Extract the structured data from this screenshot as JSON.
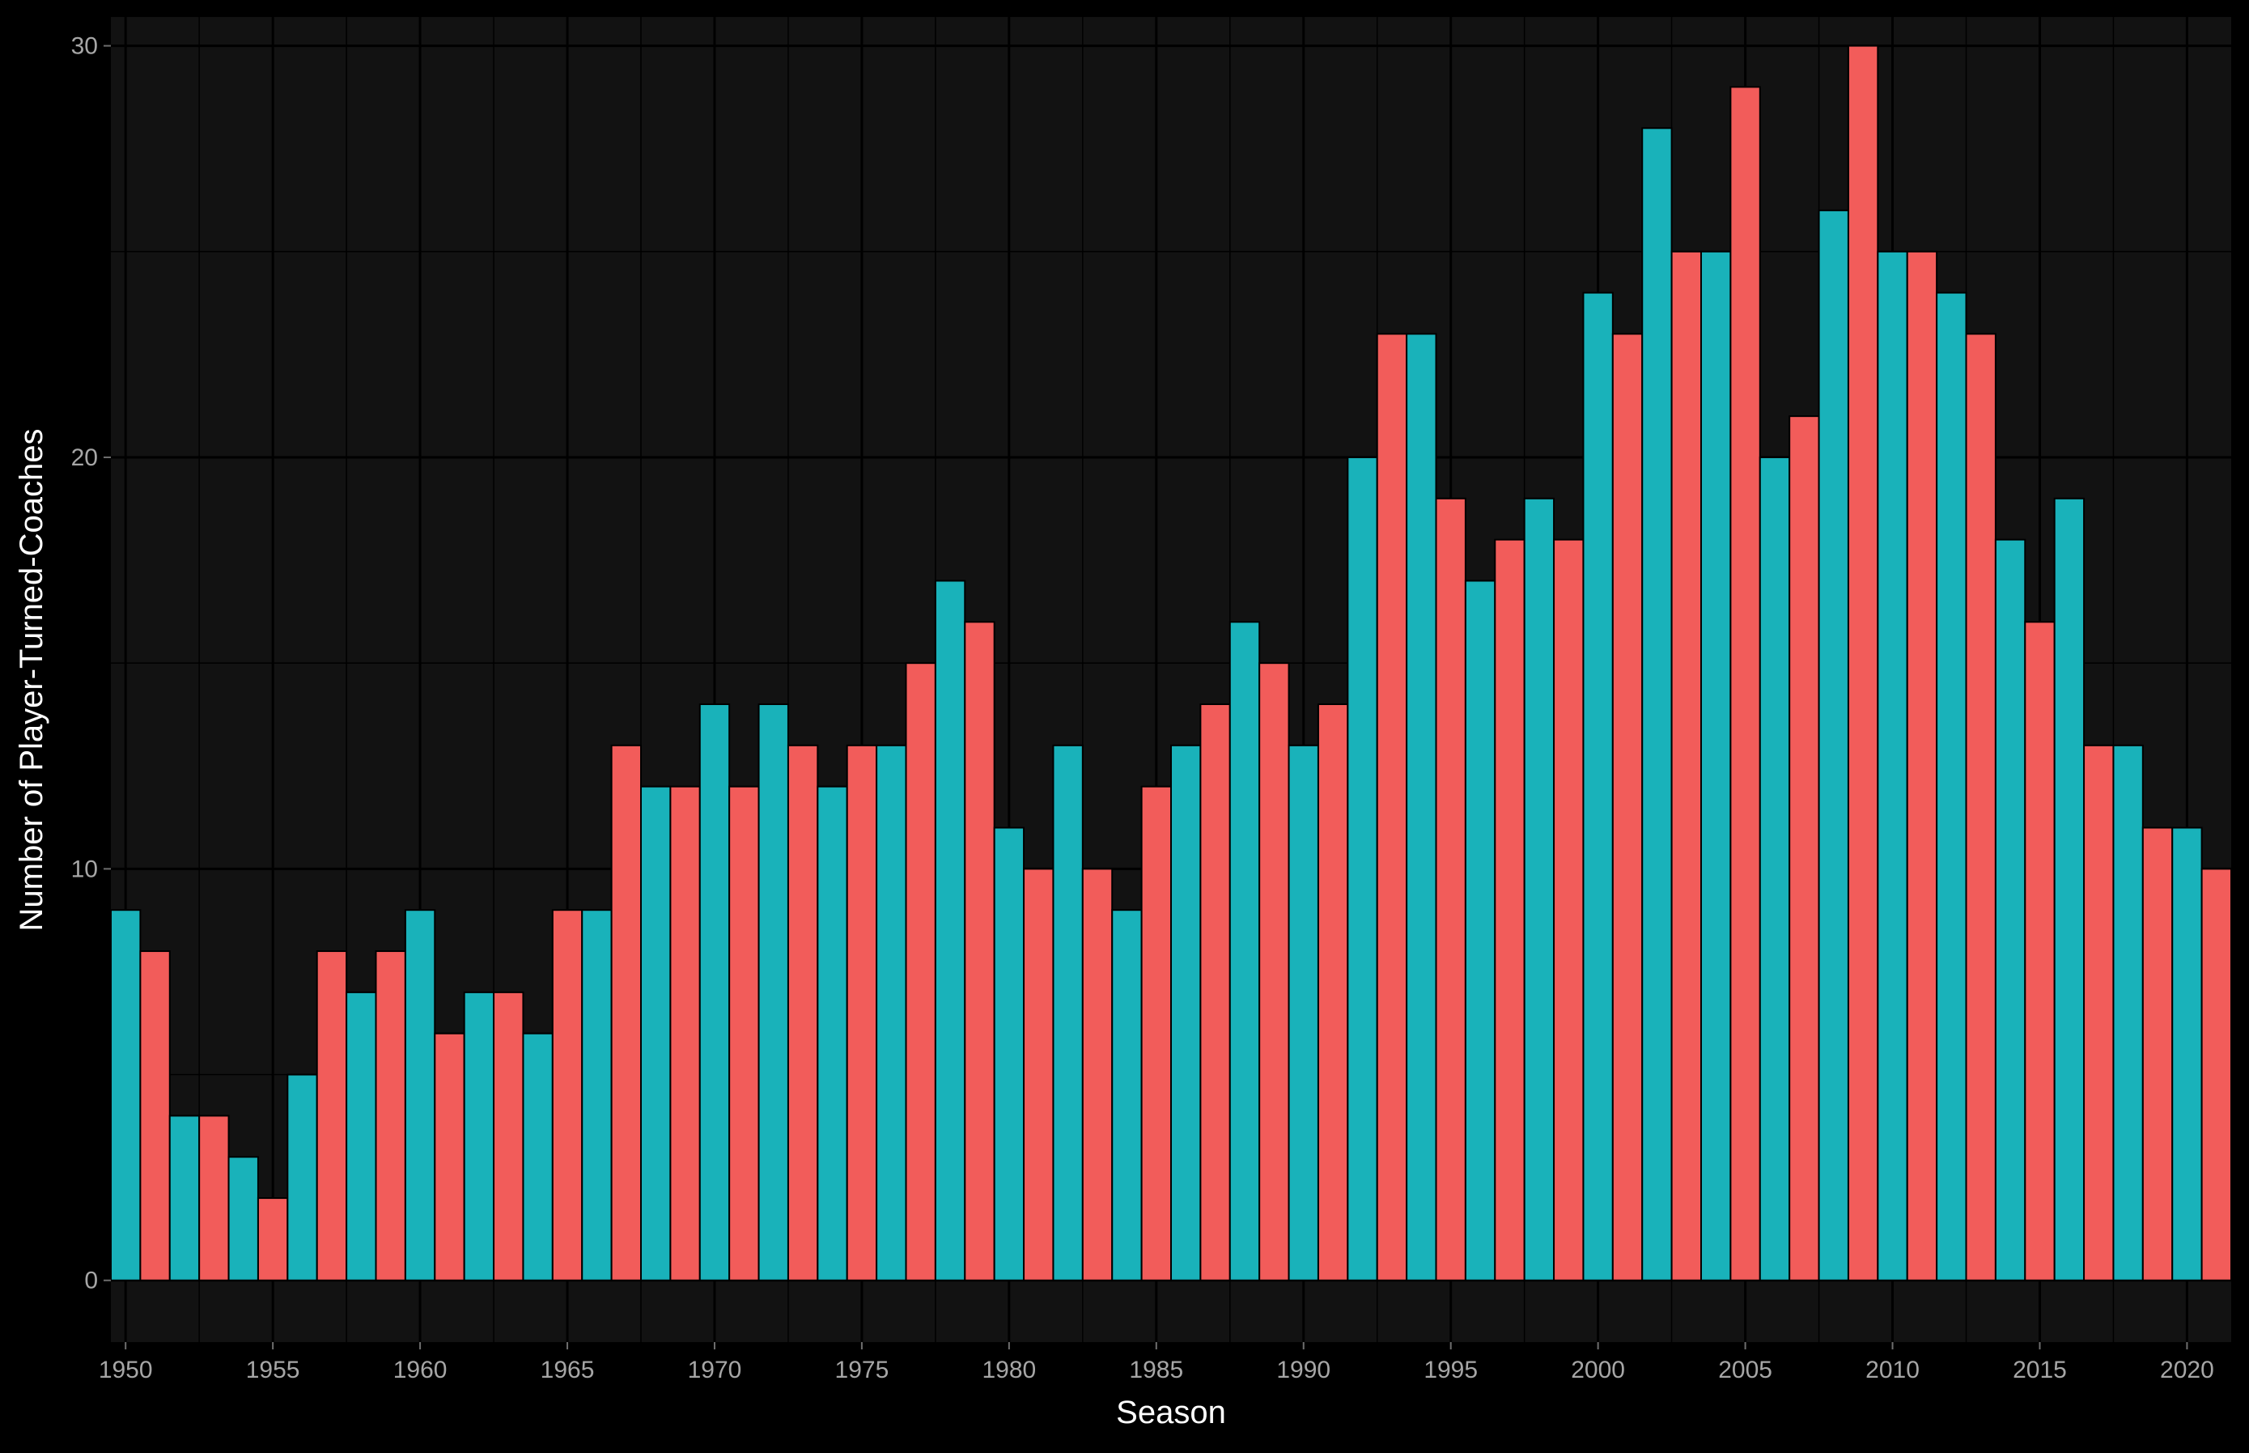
{
  "chart_data": {
    "type": "bar",
    "title": "",
    "xlabel": "Season",
    "ylabel": "Number of Player-Turned-Coaches",
    "x": [
      1950,
      1951,
      1952,
      1953,
      1954,
      1955,
      1956,
      1957,
      1958,
      1959,
      1960,
      1961,
      1962,
      1963,
      1964,
      1965,
      1966,
      1967,
      1968,
      1969,
      1970,
      1971,
      1972,
      1973,
      1974,
      1975,
      1976,
      1977,
      1978,
      1979,
      1980,
      1981,
      1982,
      1983,
      1984,
      1985,
      1986,
      1987,
      1988,
      1989,
      1990,
      1991,
      1992,
      1993,
      1994,
      1995,
      1996,
      1997,
      1998,
      1999,
      2000,
      2001,
      2002,
      2003,
      2004,
      2005,
      2006,
      2007,
      2008,
      2009,
      2010,
      2011,
      2012,
      2013,
      2014,
      2015,
      2016,
      2017,
      2018,
      2019,
      2020,
      2021
    ],
    "values": [
      9,
      8,
      4,
      4,
      3,
      2,
      5,
      8,
      7,
      8,
      9,
      6,
      7,
      7,
      6,
      9,
      9,
      13,
      12,
      12,
      14,
      12,
      14,
      13,
      12,
      13,
      13,
      15,
      17,
      16,
      11,
      10,
      13,
      10,
      9,
      12,
      13,
      14,
      16,
      15,
      13,
      14,
      20,
      23,
      23,
      19,
      17,
      18,
      19,
      18,
      24,
      23,
      28,
      25,
      25,
      29,
      20,
      21,
      26,
      30,
      25,
      25,
      24,
      23,
      18,
      16,
      19,
      13,
      13,
      11,
      11,
      10
    ],
    "xticks": [
      "1950",
      "1955",
      "1960",
      "1965",
      "1970",
      "1975",
      "1980",
      "1985",
      "1990",
      "1995",
      "2000",
      "2005",
      "2010",
      "2015",
      "2020"
    ],
    "yticks": [
      "0",
      "10",
      "20",
      "30"
    ],
    "xlim": [
      1949.5,
      2021.5
    ],
    "ylim": [
      -1.5,
      30.7
    ],
    "grid": true,
    "legend": "none",
    "colors": {
      "even_season": "#19b2ba",
      "odd_season": "#f25c5a",
      "panel_background": "#121212",
      "page_background": "#000000",
      "grid": "#000000",
      "bar_outline": "#000000",
      "tick_text": "#a6a6a6",
      "title_text": "#ffffff"
    }
  }
}
